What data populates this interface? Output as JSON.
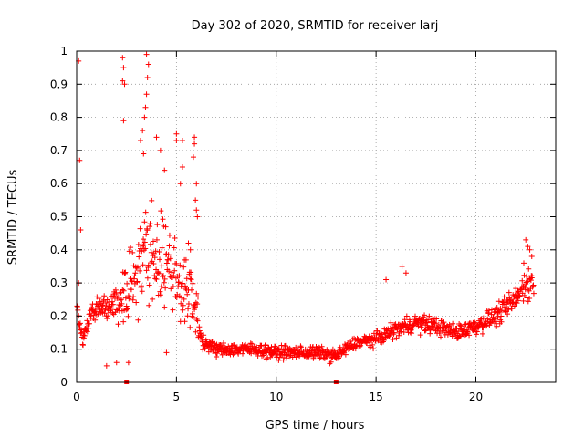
{
  "chart_data": {
    "type": "scatter",
    "title": "Day 302 of 2020, SRMTID for receiver larj",
    "xlabel": "GPS time / hours",
    "ylabel": "SRMTID / TECUs",
    "xlim": [
      0,
      24
    ],
    "ylim": [
      0,
      1
    ],
    "xticks": [
      0,
      5,
      10,
      15,
      20
    ],
    "xtick_labels": [
      "0",
      "5",
      "10",
      "15",
      "20"
    ],
    "yticks": [
      0,
      0.1,
      0.2,
      0.3,
      0.4,
      0.5,
      0.6,
      0.7,
      0.8,
      0.9,
      1
    ],
    "ytick_labels": [
      "0",
      "0.1",
      "0.2",
      "0.3",
      "0.4",
      "0.5",
      "0.6",
      "0.7",
      "0.8",
      "0.9",
      "1"
    ],
    "grid": true,
    "marker": "plus",
    "color": "#ff0000",
    "series": [
      {
        "name": "SRMTID",
        "profile_x": [
          0,
          0.3,
          0.7,
          1.0,
          1.5,
          2.0,
          2.5,
          3.0,
          3.5,
          4.0,
          4.5,
          5.0,
          5.5,
          6.0,
          6.3,
          7,
          8,
          9,
          10,
          11,
          12,
          13,
          14,
          15,
          16,
          17,
          18,
          19,
          20,
          21,
          22,
          22.5,
          22.9
        ],
        "profile_y": [
          0.22,
          0.13,
          0.2,
          0.24,
          0.22,
          0.24,
          0.27,
          0.35,
          0.4,
          0.38,
          0.36,
          0.32,
          0.27,
          0.22,
          0.12,
          0.1,
          0.1,
          0.1,
          0.09,
          0.09,
          0.09,
          0.08,
          0.12,
          0.13,
          0.16,
          0.18,
          0.17,
          0.15,
          0.17,
          0.2,
          0.25,
          0.3,
          0.3
        ],
        "points": [
          [
            0.1,
            0.97
          ],
          [
            0.15,
            0.67
          ],
          [
            0.2,
            0.46
          ],
          [
            0.1,
            0.3
          ],
          [
            2.3,
            0.98
          ],
          [
            2.35,
            0.95
          ],
          [
            2.3,
            0.91
          ],
          [
            2.4,
            0.9
          ],
          [
            2.35,
            0.79
          ],
          [
            3.5,
            0.99
          ],
          [
            3.6,
            0.96
          ],
          [
            3.55,
            0.92
          ],
          [
            3.5,
            0.87
          ],
          [
            3.45,
            0.83
          ],
          [
            3.4,
            0.8
          ],
          [
            3.3,
            0.76
          ],
          [
            3.2,
            0.73
          ],
          [
            3.35,
            0.69
          ],
          [
            4.0,
            0.74
          ],
          [
            4.2,
            0.7
          ],
          [
            4.4,
            0.64
          ],
          [
            5.0,
            0.75
          ],
          [
            5.0,
            0.73
          ],
          [
            5.3,
            0.73
          ],
          [
            5.3,
            0.65
          ],
          [
            5.2,
            0.6
          ],
          [
            5.9,
            0.74
          ],
          [
            5.9,
            0.72
          ],
          [
            5.85,
            0.68
          ],
          [
            6.0,
            0.6
          ],
          [
            5.95,
            0.55
          ],
          [
            6.0,
            0.52
          ],
          [
            6.05,
            0.5
          ],
          [
            5.6,
            0.42
          ],
          [
            5.7,
            0.4
          ],
          [
            1.5,
            0.05
          ],
          [
            2.0,
            0.06
          ],
          [
            2.6,
            0.06
          ],
          [
            4.5,
            0.09
          ],
          [
            16.3,
            0.35
          ],
          [
            16.5,
            0.33
          ],
          [
            15.5,
            0.31
          ],
          [
            22.5,
            0.43
          ],
          [
            22.6,
            0.41
          ],
          [
            22.7,
            0.4
          ],
          [
            22.8,
            0.38
          ],
          [
            22.4,
            0.36
          ]
        ]
      }
    ],
    "baseline_markers_x": [
      2.5,
      13.0
    ]
  }
}
